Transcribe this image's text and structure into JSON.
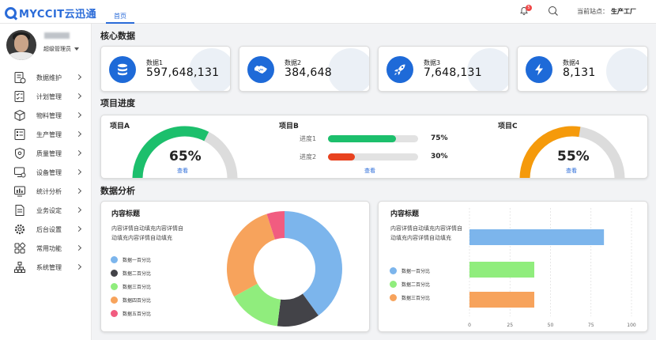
{
  "header": {
    "logo_text": "MYCCIT云迅通",
    "home_tab": "首页",
    "notification_count": "5",
    "station_label": "当前站点：",
    "station_value": "生产工厂"
  },
  "user": {
    "role": "超级管理员"
  },
  "sidebar": {
    "items": [
      {
        "label": "数据维护",
        "icon": "database-doc-icon"
      },
      {
        "label": "计划管理",
        "icon": "checklist-icon"
      },
      {
        "label": "物料管理",
        "icon": "box-icon"
      },
      {
        "label": "生产管理",
        "icon": "list-doc-icon"
      },
      {
        "label": "质量管理",
        "icon": "shield-icon"
      },
      {
        "label": "设备管理",
        "icon": "monitor-gear-icon"
      },
      {
        "label": "统计分析",
        "icon": "chart-monitor-icon"
      },
      {
        "label": "业务设定",
        "icon": "document-icon"
      },
      {
        "label": "后台设置",
        "icon": "gear-icon"
      },
      {
        "label": "常用功能",
        "icon": "grid-icon"
      },
      {
        "label": "系统管理",
        "icon": "org-chart-icon"
      }
    ]
  },
  "sections": {
    "core": "核心数据",
    "progress": "项目进度",
    "analysis": "数据分析"
  },
  "stats": [
    {
      "label": "数据1",
      "value": "597,648,131",
      "icon": "database-icon"
    },
    {
      "label": "数据2",
      "value": "384,648",
      "icon": "handshake-icon"
    },
    {
      "label": "数据3",
      "value": "7,648,131",
      "icon": "rocket-icon"
    },
    {
      "label": "数据4",
      "value": "8,131",
      "icon": "lightning-icon"
    }
  ],
  "projects": {
    "a": {
      "name": "项目A",
      "percent": "65%",
      "value": 65,
      "color": "#1cbf6c",
      "link": "查看"
    },
    "b": {
      "name": "项目B",
      "link": "查看",
      "bars": [
        {
          "label": "进度1",
          "percent": "75%",
          "value": 75,
          "color": "#1cbf6c"
        },
        {
          "label": "进度2",
          "percent": "30%",
          "value": 30,
          "color": "#e8421f"
        }
      ]
    },
    "c": {
      "name": "项目C",
      "percent": "55%",
      "value": 55,
      "color": "#f59a0b",
      "link": "查看"
    }
  },
  "analysis_left": {
    "title": "内容标题",
    "desc": "内容详情自动填充内容详情自动填充内容详情自动填充"
  },
  "analysis_right": {
    "title": "内容标题",
    "desc": "内容详情自动填充内容详情自动填充内容详情自动填充"
  },
  "chart_data": [
    {
      "type": "pie",
      "title": "",
      "categories": [
        "数据一百分比",
        "数据二百分比",
        "数据三百分比",
        "数据四百分比",
        "数据五百分比"
      ],
      "values": [
        40,
        12,
        15,
        28,
        5
      ],
      "colors": [
        "#7cb5ec",
        "#434348",
        "#90ed7d",
        "#f7a35c",
        "#f15c80"
      ]
    },
    {
      "type": "bar",
      "title": "",
      "orientation": "horizontal",
      "categories": [
        "数据一百分比",
        "数据二百分比",
        "数据三百分比"
      ],
      "values": [
        83,
        40,
        40
      ],
      "colors": [
        "#7cb5ec",
        "#90ed7d",
        "#f7a35c"
      ],
      "xlim": [
        0,
        100
      ],
      "xticks": [
        "0",
        "25",
        "50",
        "75",
        "100"
      ],
      "grid": true
    }
  ]
}
